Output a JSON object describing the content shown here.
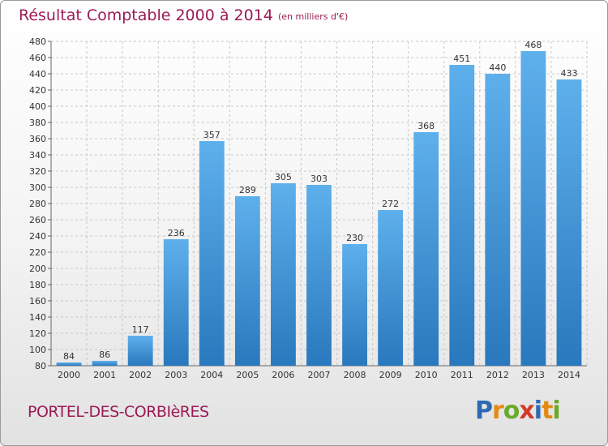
{
  "header": {
    "title": "Résultat Comptable 2000 à 2014",
    "subtitle": "(en milliers d'€)"
  },
  "footer": {
    "commune": "PORTEL-DES-CORBIèRES",
    "logo": {
      "letters": [
        "P",
        "r",
        "o",
        "x",
        "i",
        "t",
        "i"
      ],
      "colors": [
        "#2d6ab4",
        "#e58a12",
        "#6aaa2a",
        "#d33a2b",
        "#2d6ab4",
        "#e58a12",
        "#6aaa2a"
      ]
    }
  },
  "chart_data": {
    "type": "bar",
    "title": "Résultat Comptable 2000 à 2014",
    "subtitle": "(en milliers d'€)",
    "categories": [
      "2000",
      "2001",
      "2002",
      "2003",
      "2004",
      "2005",
      "2006",
      "2007",
      "2008",
      "2009",
      "2010",
      "2011",
      "2012",
      "2013",
      "2014"
    ],
    "values": [
      84,
      86,
      117,
      236,
      357,
      289,
      305,
      303,
      230,
      272,
      368,
      451,
      440,
      468,
      433
    ],
    "data_labels": [
      "84",
      "86",
      "117",
      "236",
      "357",
      "289",
      "305",
      "303",
      "230",
      "272",
      "368",
      "451",
      "440",
      "468",
      "433"
    ],
    "y_ticks": [
      80,
      100,
      120,
      140,
      160,
      180,
      200,
      220,
      240,
      260,
      280,
      300,
      320,
      340,
      360,
      380,
      400,
      420,
      440,
      460,
      480
    ],
    "ylim": [
      80,
      480
    ],
    "grid": true,
    "legend": "none",
    "bar_color_top": "#5eb0ec",
    "bar_color_bottom": "#2a78bd"
  }
}
